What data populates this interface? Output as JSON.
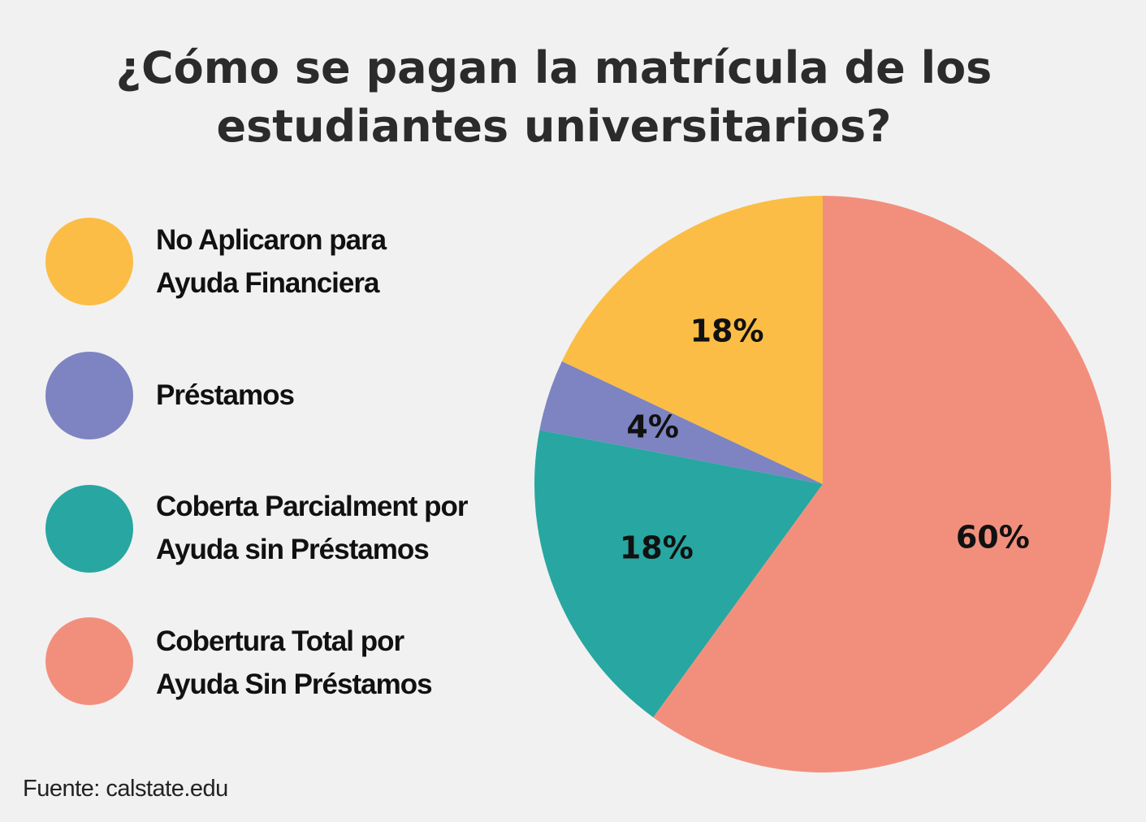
{
  "chart_data": {
    "type": "pie",
    "title_lines": [
      "¿Cómo se pagan la matrícula de los",
      "estudiantes universitarios?"
    ],
    "slices": [
      {
        "key": "no-aplicaron",
        "label_lines": [
          "No Aplicaron para",
          "Ayuda Financiera"
        ],
        "value": 18,
        "value_label": "18%",
        "color": "#fbbd45"
      },
      {
        "key": "prestamos",
        "label_lines": [
          "Préstamos"
        ],
        "value": 4,
        "value_label": "4%",
        "color": "#7d84c1"
      },
      {
        "key": "cobertura-parcial",
        "label_lines": [
          "Coberta Parcialment por",
          "Ayuda sin Préstamos"
        ],
        "value": 18,
        "value_label": "18%",
        "color": "#28a6a1"
      },
      {
        "key": "cobertura-total",
        "label_lines": [
          "Cobertura Total por",
          "Ayuda Sin Préstamos"
        ],
        "value": 60,
        "value_label": "60%",
        "color": "#f28f7c"
      }
    ],
    "start_angle": "12 o'clock",
    "direction": "counterclockwise",
    "legend_position": "left"
  },
  "source": "Fuente: calstate.edu"
}
